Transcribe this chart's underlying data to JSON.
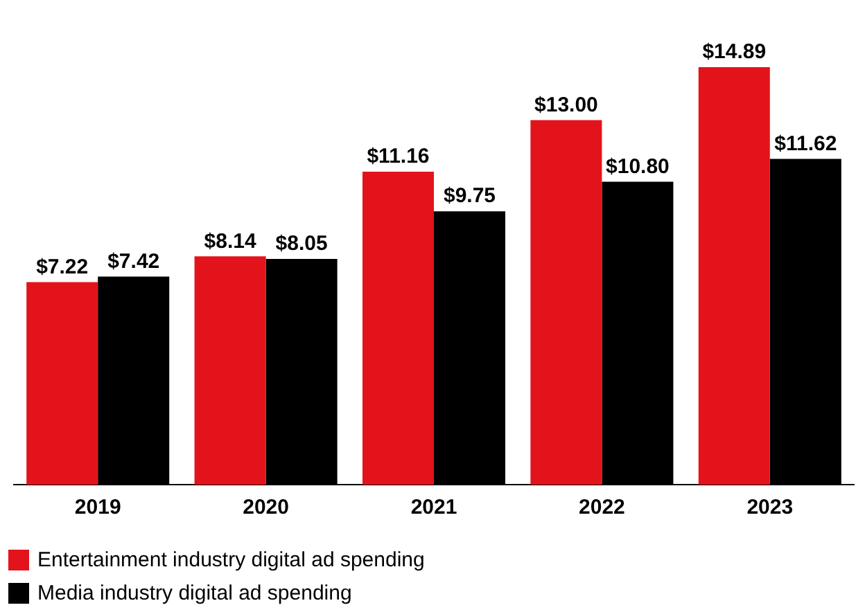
{
  "chart_data": {
    "type": "bar",
    "categories": [
      "2019",
      "2020",
      "2021",
      "2022",
      "2023"
    ],
    "series": [
      {
        "name": "Entertainment industry digital ad spending",
        "color": "#e3131b",
        "values": [
          7.22,
          8.14,
          11.16,
          13.0,
          14.89
        ],
        "value_labels": [
          "$7.22",
          "$8.14",
          "$11.16",
          "$13.00",
          "$14.89"
        ]
      },
      {
        "name": "Media industry digital ad spending",
        "color": "#000000",
        "values": [
          7.42,
          8.05,
          9.75,
          10.8,
          11.62
        ],
        "value_labels": [
          "$7.42",
          "$8.05",
          "$9.75",
          "$10.80",
          "$11.62"
        ]
      }
    ],
    "tick_labels": "x",
    "grid": false,
    "legend": "bottom left"
  }
}
